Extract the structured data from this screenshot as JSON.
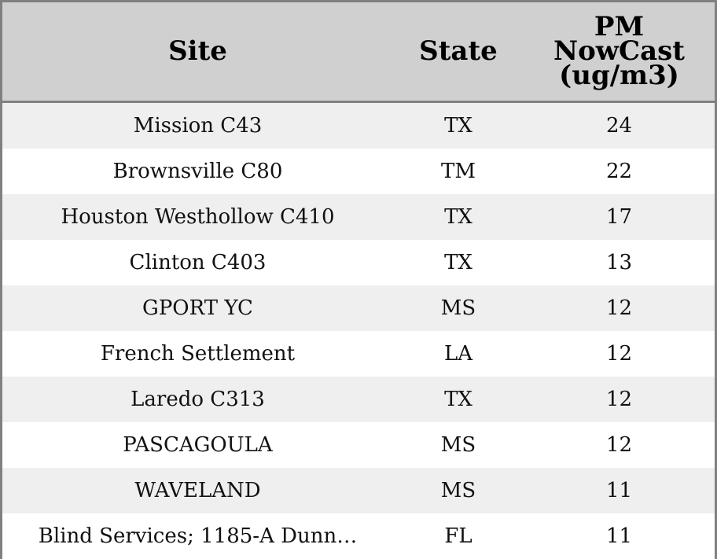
{
  "table": {
    "header": [
      "Site",
      "State",
      "PM NowCast (ug/m3)"
    ],
    "rows": [
      [
        "Mission C43",
        "TX",
        24
      ],
      [
        "Brownsville C80",
        "TM",
        22
      ],
      [
        "Houston Westhollow C410",
        "TX",
        17
      ],
      [
        "Clinton C403",
        "TX",
        13
      ],
      [
        "GPORT YC",
        "MS",
        12
      ],
      [
        "French Settlement",
        "LA",
        12
      ],
      [
        "Laredo C313",
        "TX",
        12
      ],
      [
        "PASCAGOULA",
        "MS",
        12
      ],
      [
        "WAVELAND",
        "MS",
        11
      ],
      [
        "Blind Services; 1185-A Dunn…",
        "FL",
        11
      ]
    ]
  }
}
